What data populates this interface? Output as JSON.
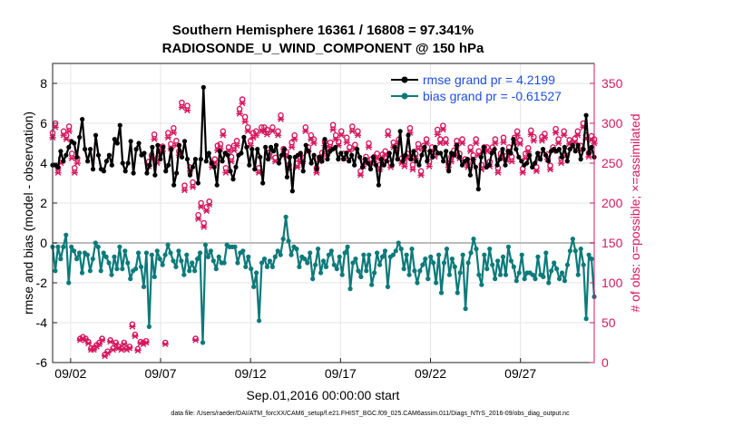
{
  "chart_data": {
    "type": "line",
    "title_line1": "Southern Hemisphere 16361 / 16808 = 97.341%",
    "title_line2": "RADIOSONDE_U_WIND_COMPONENT @ 150 hPa",
    "xlabel": "Sep.01,2016 00:00:00 start",
    "ylabel_left": "rmse and bias (model - observation)",
    "ylabel_right": "# of obs: o=possible; ×=assimilated",
    "footnote": "data file: /Users/raeder/DAI/ATM_forcXX/CAM6_setup/f.e21.FHIST_BGC.f09_025.CAM6assim.011/Diags_NTrS_2016-09/obs_diag_output.nc",
    "x_range_days": [
      0.5,
      30.6
    ],
    "x_ticks": [
      {
        "day": 1.5,
        "label": "09/02"
      },
      {
        "day": 6.5,
        "label": "09/07"
      },
      {
        "day": 11.5,
        "label": "09/12"
      },
      {
        "day": 16.5,
        "label": "09/17"
      },
      {
        "day": 21.5,
        "label": "09/22"
      },
      {
        "day": 26.5,
        "label": "09/27"
      }
    ],
    "y_left_range": [
      -6,
      9
    ],
    "y_left_ticks": [
      -6,
      -4,
      -2,
      0,
      2,
      4,
      6,
      8
    ],
    "y_right_range": [
      0,
      375
    ],
    "y_right_ticks": [
      0,
      50,
      100,
      150,
      200,
      250,
      300,
      350
    ],
    "zero_line": 0,
    "colors": {
      "rmse": "#000000",
      "bias": "#0d7a7a",
      "obs": "#d6185f",
      "legend_text": "#1f4fe0",
      "axis": "#222222",
      "grid": "#e6e6e6",
      "zero_line": "#bbbbbb"
    },
    "legend": [
      {
        "label": "rmse grand pr = 4.2199",
        "series": "rmse"
      },
      {
        "label": "bias grand pr = -0.61527",
        "series": "bias"
      }
    ],
    "series": [
      {
        "name": "rmse",
        "axis": "left",
        "values": [
          3.9,
          3.9,
          3.8,
          4.6,
          4.1,
          4.4,
          4.8,
          5.1,
          5.0,
          4.3,
          5.3,
          6.2,
          4.7,
          4.1,
          4.7,
          3.7,
          5.4,
          4.4,
          3.7,
          3.6,
          4.1,
          4.4,
          3.9,
          5.2,
          5.0,
          5.9,
          4.0,
          3.6,
          4.0,
          5.1,
          3.5,
          4.7,
          5.0,
          4.4,
          4.5,
          3.5,
          3.9,
          4.8,
          3.4,
          4.9,
          4.2,
          4.8,
          3.6,
          3.9,
          4.7,
          2.9,
          3.5,
          4.9,
          4.3,
          5.1,
          4.2,
          3.4,
          3.8,
          4.2,
          3.0,
          4.2,
          7.8,
          4.1,
          4.5,
          4.0,
          3.8,
          2.9,
          4.6,
          4.1,
          4.5,
          4.4,
          3.6,
          3.2,
          3.8,
          4.4,
          4.5,
          5.3,
          4.8,
          3.9,
          4.7,
          3.7,
          4.7,
          4.3,
          3.0,
          4.8,
          4.2,
          4.8,
          4.6,
          4.9,
          4.0,
          4.4,
          4.7,
          3.3,
          4.3,
          2.6,
          4.3,
          4.4,
          4.5,
          3.6,
          4.9,
          4.6,
          4.0,
          4.4,
          3.7,
          4.3,
          4.1,
          5.2,
          4.2,
          4.6,
          4.7,
          4.8,
          4.2,
          4.5,
          4.2,
          4.5,
          4.1,
          4.4,
          3.9,
          4.7,
          4.3,
          3.8,
          4.2,
          4.0,
          3.7,
          4.3,
          3.9,
          2.9,
          4.2,
          3.9,
          4.1,
          4.5,
          3.9,
          4.8,
          4.2,
          5.6,
          4.1,
          4.4,
          5.4,
          4.2,
          4.6,
          4.1,
          3.9,
          4.4,
          4.8,
          4.1,
          4.6,
          4.3,
          4.8,
          4.5,
          4.5,
          4.1,
          4.6,
          3.6,
          4.5,
          4.4,
          4.9,
          4.3,
          3.9,
          4.1,
          4.2,
          3.4,
          4.2,
          3.8,
          2.7,
          4.3,
          4.8,
          3.8,
          3.9,
          4.5,
          4.7,
          3.9,
          4.2,
          4.7,
          3.9,
          4.6,
          4.5,
          5.2,
          4.7,
          4.3,
          4.1,
          3.9,
          4.0,
          4.4,
          3.8,
          4.0,
          4.5,
          4.2,
          4.7,
          4.4,
          4.1,
          4.6,
          4.7,
          4.6,
          4.7,
          4.3,
          4.8,
          4.1,
          4.7,
          4.9,
          4.6,
          4.9,
          4.2,
          4.7,
          6.4,
          4.5,
          4.8,
          4.3
        ]
      },
      {
        "name": "bias",
        "axis": "left",
        "values": [
          -0.2,
          -1.4,
          -0.2,
          -0.8,
          -0.2,
          0.4,
          -2.0,
          -0.2,
          -0.4,
          -0.8,
          -0.5,
          -1.5,
          -0.5,
          -0.6,
          -1.4,
          -0.8,
          0.0,
          -0.2,
          -1.4,
          -0.5,
          -0.7,
          -1.0,
          -1.6,
          -0.7,
          -1.3,
          -0.2,
          -1.3,
          -0.4,
          -1.0,
          -1.8,
          -1.4,
          -1.3,
          -0.5,
          -1.2,
          -2.2,
          -0.5,
          -4.2,
          -0.6,
          -1.7,
          -0.4,
          -0.8,
          -1.1,
          -0.6,
          -0.1,
          -0.5,
          -0.9,
          -1.2,
          -0.4,
          -0.9,
          -1.6,
          -0.6,
          -1.4,
          -1.0,
          -1.4,
          -0.8,
          -0.5,
          -5.0,
          -0.1,
          -0.7,
          -0.4,
          -0.9,
          -1.3,
          -0.7,
          -1.0,
          -1.0,
          -0.1,
          -0.2,
          -0.2,
          -0.2,
          -1.0,
          -0.5,
          -0.4,
          -1.2,
          -0.7,
          -1.3,
          -2.2,
          -1.5,
          -3.9,
          -1.0,
          -0.8,
          -1.2,
          -0.9,
          -1.2,
          -0.7,
          -0.4,
          -0.6,
          0.2,
          1.3,
          0.1,
          -0.6,
          -0.2,
          -0.3,
          -1.2,
          -0.7,
          -0.8,
          -1.0,
          -0.5,
          -1.8,
          -1.1,
          -0.3,
          -1.5,
          -0.9,
          -1.2,
          -0.6,
          -0.4,
          -1.1,
          -1.3,
          -0.7,
          -1.6,
          -0.5,
          -0.2,
          -2.3,
          -1.0,
          -0.8,
          -1.4,
          -1.7,
          -0.6,
          -1.4,
          -0.6,
          -2.1,
          -1.5,
          -0.5,
          -1.1,
          -0.7,
          -0.4,
          -2.2,
          -0.7,
          -0.6,
          -0.4,
          0.0,
          -0.3,
          -1.3,
          -0.6,
          -1.6,
          -0.3,
          -1.4,
          -2.0,
          -1.4,
          -1.1,
          -0.8,
          -1.8,
          -0.7,
          -1.0,
          -2.0,
          -0.6,
          -2.5,
          -1.0,
          -0.3,
          -1.6,
          -0.8,
          -1.2,
          -2.5,
          -1.5,
          -0.6,
          -3.3,
          -1.0,
          -0.5,
          0.2,
          -0.3,
          -1.6,
          -2.1,
          -0.6,
          -1.3,
          -0.3,
          -1.1,
          -1.8,
          -0.9,
          -1.6,
          -0.7,
          -1.6,
          -0.2,
          -0.9,
          -1.2,
          -1.9,
          -1.5,
          -0.6,
          -1.8,
          -1.5,
          -1.5,
          -1.6,
          -1.8,
          -0.7,
          -1.6,
          -1.7,
          -0.5,
          -2.0,
          -1.4,
          -1.0,
          -1.3,
          -1.8,
          -1.5,
          -1.9,
          -1.1,
          -0.4,
          0.2,
          -0.4,
          -1.6,
          -0.3,
          -1.1,
          -3.8,
          -0.6,
          -0.8,
          -2.7
        ]
      },
      {
        "name": "obs_possible",
        "axis": "right",
        "values": [
          288,
          300,
          244,
          256,
          290,
          285,
          296,
          262,
          244,
          256,
          30,
          32,
          30,
          26,
          18,
          18,
          22,
          25,
          30,
          10,
          14,
          28,
          18,
          25,
          20,
          18,
          25,
          18,
          20,
          48,
          35,
          17,
          26,
          25,
          27,
          252,
          260,
          286,
          256,
          270,
          271,
          25,
          288,
          274,
          294,
          278,
          265,
          326,
          222,
          322,
          245,
          226,
          30,
          185,
          200,
          175,
          195,
          202,
          250,
          255,
          272,
          274,
          290,
          244,
          270,
          258,
          272,
          278,
          318,
          330,
          308,
          295,
          278,
          288,
          290,
          244,
          295,
          295,
          292,
          264,
          295,
          257,
          290,
          310,
          268,
          264,
          248,
          276,
          285,
          250,
          258,
          257,
          295,
          270,
          285,
          280,
          244,
          257,
          263,
          277,
          268,
          276,
          298,
          285,
          277,
          290,
          262,
          282,
          270,
          296,
          273,
          290,
          240,
          252,
          258,
          275,
          255,
          258,
          262,
          248,
          261,
          265,
          290,
          250,
          276,
          272,
          280,
          256,
          252,
          262,
          294,
          248,
          262,
          274,
          240,
          272,
          280,
          252,
          270,
          264,
          292,
          280,
          297,
          280,
          250,
          258,
          266,
          278,
          262,
          280,
          255,
          250,
          270,
          260,
          280,
          265,
          248,
          270,
          270,
          252,
          270,
          280,
          244,
          262,
          282,
          259,
          270,
          258,
          282,
          290,
          279,
          243,
          262,
          269,
          291,
          283,
          245,
          261,
          283,
          287,
          261,
          247,
          270,
          293,
          280,
          256,
          290,
          265,
          279,
          276,
          281,
          290,
          272,
          300,
          285,
          263,
          284,
          280
        ]
      },
      {
        "name": "obs_assimilated",
        "axis": "right",
        "values": [
          282,
          295,
          238,
          250,
          285,
          280,
          290,
          256,
          238,
          250,
          28,
          30,
          28,
          24,
          16,
          16,
          20,
          23,
          28,
          8,
          12,
          26,
          16,
          23,
          18,
          16,
          23,
          16,
          18,
          45,
          33,
          15,
          24,
          23,
          25,
          246,
          255,
          280,
          250,
          265,
          265,
          23,
          282,
          268,
          288,
          272,
          260,
          320,
          216,
          316,
          240,
          220,
          28,
          180,
          195,
          170,
          190,
          198,
          245,
          250,
          266,
          268,
          285,
          238,
          265,
          252,
          266,
          272,
          312,
          325,
          302,
          290,
          272,
          282,
          285,
          238,
          290,
          290,
          286,
          258,
          290,
          252,
          285,
          305,
          262,
          258,
          242,
          270,
          280,
          245,
          252,
          252,
          290,
          265,
          280,
          275,
          238,
          252,
          258,
          272,
          262,
          270,
          292,
          280,
          272,
          285,
          256,
          276,
          265,
          290,
          268,
          285,
          235,
          246,
          252,
          270,
          250,
          252,
          256,
          242,
          255,
          260,
          285,
          245,
          270,
          266,
          275,
          250,
          246,
          256,
          288,
          242,
          256,
          268,
          235,
          266,
          275,
          246,
          265,
          258,
          286,
          275,
          292,
          275,
          245,
          252,
          260,
          272,
          256,
          275,
          250,
          245,
          265,
          255,
          275,
          260,
          242,
          265,
          265,
          246,
          265,
          275,
          238,
          256,
          276,
          254,
          265,
          252,
          276,
          285,
          274,
          238,
          256,
          264,
          286,
          278,
          240,
          255,
          278,
          282,
          255,
          242,
          265,
          288,
          275,
          250,
          285,
          260,
          274,
          270,
          276,
          285,
          266,
          295,
          280,
          258,
          279,
          275
        ]
      }
    ]
  }
}
